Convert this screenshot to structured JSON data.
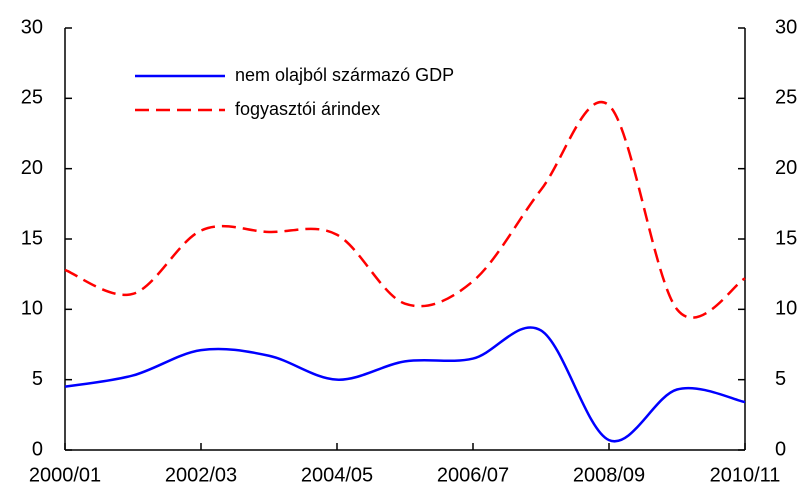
{
  "chart_data": {
    "type": "line",
    "categories": [
      "2000/01",
      null,
      "2002/03",
      null,
      "2004/05",
      null,
      "2006/07",
      null,
      "2008/09",
      null,
      "2010/11"
    ],
    "series": [
      {
        "name": "nem olajból származó GDP",
        "color": "#0000ff",
        "dash": "solid",
        "values": [
          4.5,
          5.3,
          7.1,
          6.7,
          5.0,
          6.3,
          6.5,
          8.5,
          0.7,
          4.3,
          3.4
        ]
      },
      {
        "name": "fogyasztói árindex",
        "color": "#ff0000",
        "dash": "dashed",
        "values": [
          12.8,
          11.1,
          15.6,
          15.5,
          15.3,
          10.4,
          12.0,
          18.5,
          24.5,
          10.0,
          12.2
        ]
      }
    ],
    "ylim": [
      0,
      30
    ],
    "yticks": [
      0,
      5,
      10,
      15,
      20,
      25,
      30
    ],
    "y2lim": [
      0,
      30
    ],
    "y2ticks": [
      0,
      5,
      10,
      15,
      20,
      25,
      30
    ],
    "grid": false,
    "legend": "upper left"
  }
}
